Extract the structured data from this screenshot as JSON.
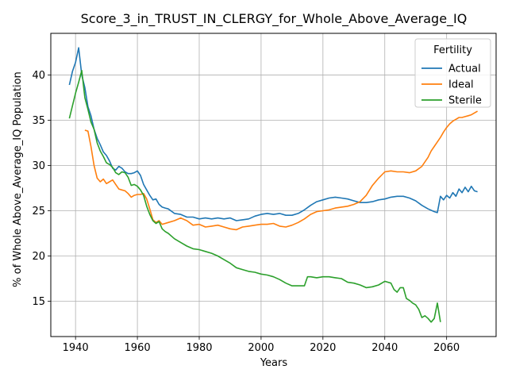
{
  "chart_data": {
    "type": "line",
    "title": "Score_3_in_TRUST_IN_CLERGY_for_Whole_Above_Average_IQ",
    "xlabel": "Years",
    "ylabel": "% of Whole Above_Average_IQ Population",
    "xlim": [
      1932,
      2076
    ],
    "ylim": [
      11.1,
      44.6
    ],
    "xticks": [
      1940,
      1960,
      1980,
      2000,
      2020,
      2040,
      2060
    ],
    "yticks": [
      15,
      20,
      25,
      30,
      35,
      40
    ],
    "grid": true,
    "legend": {
      "title": "Fertility",
      "placement": "top-right"
    },
    "series": [
      {
        "name": "Actual",
        "color": "#1f77b4",
        "x": [
          1938,
          1939,
          1940,
          1941,
          1942,
          1943,
          1944,
          1945,
          1946,
          1947,
          1948,
          1949,
          1950,
          1951,
          1952,
          1953,
          1954,
          1955,
          1956,
          1957,
          1958,
          1959,
          1960,
          1961,
          1962,
          1963,
          1964,
          1965,
          1966,
          1967,
          1968,
          1969,
          1970,
          1972,
          1974,
          1976,
          1978,
          1980,
          1982,
          1984,
          1986,
          1988,
          1990,
          1992,
          1994,
          1996,
          1998,
          2000,
          2002,
          2004,
          2006,
          2008,
          2010,
          2012,
          2014,
          2016,
          2018,
          2020,
          2022,
          2024,
          2026,
          2028,
          2030,
          2032,
          2034,
          2036,
          2038,
          2040,
          2042,
          2044,
          2046,
          2048,
          2050,
          2052,
          2054,
          2056,
          2057,
          2058,
          2059,
          2060,
          2061,
          2062,
          2063,
          2064,
          2065,
          2066,
          2067,
          2068,
          2069,
          2070
        ],
        "values": [
          38.9,
          40.4,
          41.4,
          43.0,
          40.0,
          38.6,
          36.5,
          35.5,
          34.0,
          33.0,
          32.3,
          31.5,
          31.1,
          30.5,
          29.7,
          29.5,
          29.9,
          29.7,
          29.3,
          29.1,
          29.1,
          29.2,
          29.4,
          28.9,
          27.9,
          27.3,
          26.7,
          26.2,
          26.3,
          25.7,
          25.4,
          25.3,
          25.2,
          24.7,
          24.6,
          24.3,
          24.3,
          24.1,
          24.2,
          24.1,
          24.2,
          24.1,
          24.2,
          23.9,
          24.0,
          24.1,
          24.4,
          24.6,
          24.7,
          24.6,
          24.7,
          24.5,
          24.5,
          24.7,
          25.1,
          25.6,
          26.0,
          26.2,
          26.4,
          26.5,
          26.4,
          26.3,
          26.1,
          25.9,
          25.9,
          26.0,
          26.2,
          26.3,
          26.5,
          26.6,
          26.6,
          26.4,
          26.1,
          25.6,
          25.2,
          24.9,
          24.8,
          26.6,
          26.2,
          26.7,
          26.4,
          27.0,
          26.6,
          27.4,
          27.0,
          27.6,
          27.1,
          27.7,
          27.2,
          27.1
        ]
      },
      {
        "name": "Ideal",
        "color": "#ff7f0e",
        "x": [
          1943,
          1944,
          1945,
          1946,
          1947,
          1948,
          1949,
          1950,
          1951,
          1952,
          1953,
          1954,
          1955,
          1956,
          1957,
          1958,
          1959,
          1960,
          1961,
          1962,
          1963,
          1964,
          1965,
          1966,
          1967,
          1968,
          1970,
          1972,
          1974,
          1976,
          1978,
          1980,
          1982,
          1984,
          1986,
          1988,
          1990,
          1992,
          1994,
          1996,
          1998,
          2000,
          2002,
          2004,
          2006,
          2008,
          2010,
          2012,
          2014,
          2016,
          2018,
          2020,
          2022,
          2024,
          2026,
          2028,
          2030,
          2032,
          2034,
          2036,
          2038,
          2040,
          2042,
          2044,
          2046,
          2048,
          2050,
          2052,
          2054,
          2055,
          2056,
          2057,
          2058,
          2059,
          2060,
          2061,
          2062,
          2063,
          2064,
          2065,
          2066,
          2067,
          2068,
          2069,
          2070
        ],
        "values": [
          33.9,
          33.8,
          32.1,
          30.0,
          28.6,
          28.2,
          28.5,
          28.0,
          28.2,
          28.4,
          27.9,
          27.4,
          27.3,
          27.2,
          26.9,
          26.5,
          26.7,
          26.8,
          26.8,
          26.9,
          26.3,
          25.2,
          24.0,
          23.7,
          23.9,
          23.5,
          23.7,
          23.9,
          24.2,
          23.9,
          23.4,
          23.5,
          23.2,
          23.3,
          23.4,
          23.2,
          23.0,
          22.9,
          23.2,
          23.3,
          23.4,
          23.5,
          23.5,
          23.6,
          23.3,
          23.2,
          23.4,
          23.7,
          24.1,
          24.6,
          24.9,
          25.0,
          25.1,
          25.3,
          25.4,
          25.5,
          25.7,
          26.0,
          26.7,
          27.8,
          28.6,
          29.3,
          29.4,
          29.3,
          29.3,
          29.2,
          29.4,
          29.9,
          30.9,
          31.6,
          32.1,
          32.6,
          33.1,
          33.7,
          34.2,
          34.6,
          34.9,
          35.1,
          35.3,
          35.3,
          35.4,
          35.5,
          35.6,
          35.8,
          36.0
        ]
      },
      {
        "name": "Sterile",
        "color": "#2ca02c",
        "x": [
          1938,
          1939,
          1940,
          1941,
          1942,
          1943,
          1944,
          1945,
          1946,
          1947,
          1948,
          1949,
          1950,
          1951,
          1952,
          1953,
          1954,
          1955,
          1956,
          1957,
          1958,
          1959,
          1960,
          1961,
          1962,
          1963,
          1964,
          1965,
          1966,
          1967,
          1968,
          1969,
          1970,
          1972,
          1974,
          1976,
          1978,
          1980,
          1982,
          1984,
          1986,
          1988,
          1990,
          1992,
          1994,
          1996,
          1998,
          2000,
          2002,
          2004,
          2006,
          2008,
          2010,
          2012,
          2014,
          2015,
          2016,
          2018,
          2020,
          2022,
          2024,
          2026,
          2028,
          2030,
          2032,
          2034,
          2036,
          2038,
          2040,
          2042,
          2043,
          2044,
          2045,
          2046,
          2047,
          2048,
          2049,
          2050,
          2051,
          2052,
          2053,
          2054,
          2055,
          2056,
          2057,
          2058
        ],
        "values": [
          35.2,
          36.6,
          38.0,
          39.2,
          40.5,
          37.5,
          36.2,
          34.8,
          34.0,
          32.5,
          31.6,
          31.0,
          30.3,
          30.1,
          29.8,
          29.2,
          29.0,
          29.3,
          29.2,
          28.7,
          27.8,
          27.9,
          27.7,
          27.3,
          26.7,
          25.5,
          24.6,
          23.9,
          23.6,
          23.8,
          23.0,
          22.7,
          22.5,
          21.9,
          21.5,
          21.1,
          20.8,
          20.7,
          20.5,
          20.3,
          20.0,
          19.6,
          19.2,
          18.7,
          18.5,
          18.3,
          18.2,
          18.0,
          17.9,
          17.7,
          17.4,
          17.0,
          16.7,
          16.7,
          16.7,
          17.7,
          17.7,
          17.6,
          17.7,
          17.7,
          17.6,
          17.5,
          17.1,
          17.0,
          16.8,
          16.5,
          16.6,
          16.8,
          17.2,
          17.0,
          16.3,
          16.0,
          16.5,
          16.5,
          15.3,
          15.1,
          14.8,
          14.6,
          14.1,
          13.2,
          13.4,
          13.1,
          12.7,
          13.1,
          14.8,
          12.7
        ]
      }
    ]
  }
}
